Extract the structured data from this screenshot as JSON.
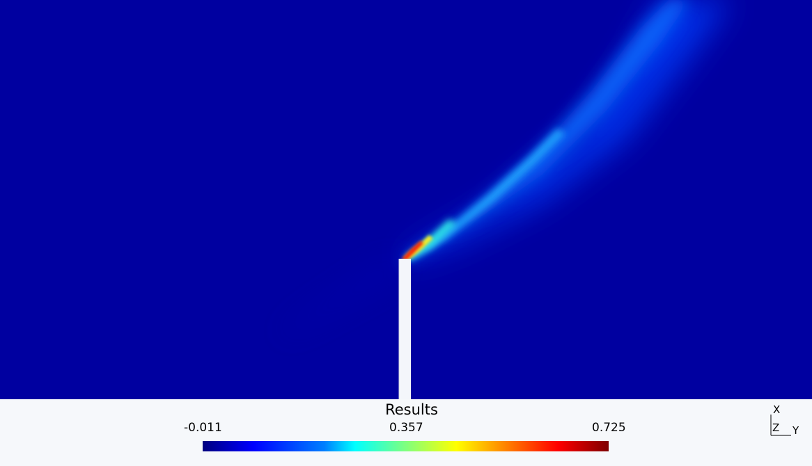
{
  "legend": {
    "title": "Results",
    "min_label": "-0.011",
    "mid_label": "0.357",
    "max_label": "0.725"
  },
  "axes": {
    "x_label": "X",
    "y_label": "Y",
    "z_label": "Z"
  },
  "colors": {
    "background_field": "#0000a0",
    "lower_panel": "#f6f8fb",
    "chimney": "#f4f6fb",
    "plume_core": "#ff2000"
  }
}
